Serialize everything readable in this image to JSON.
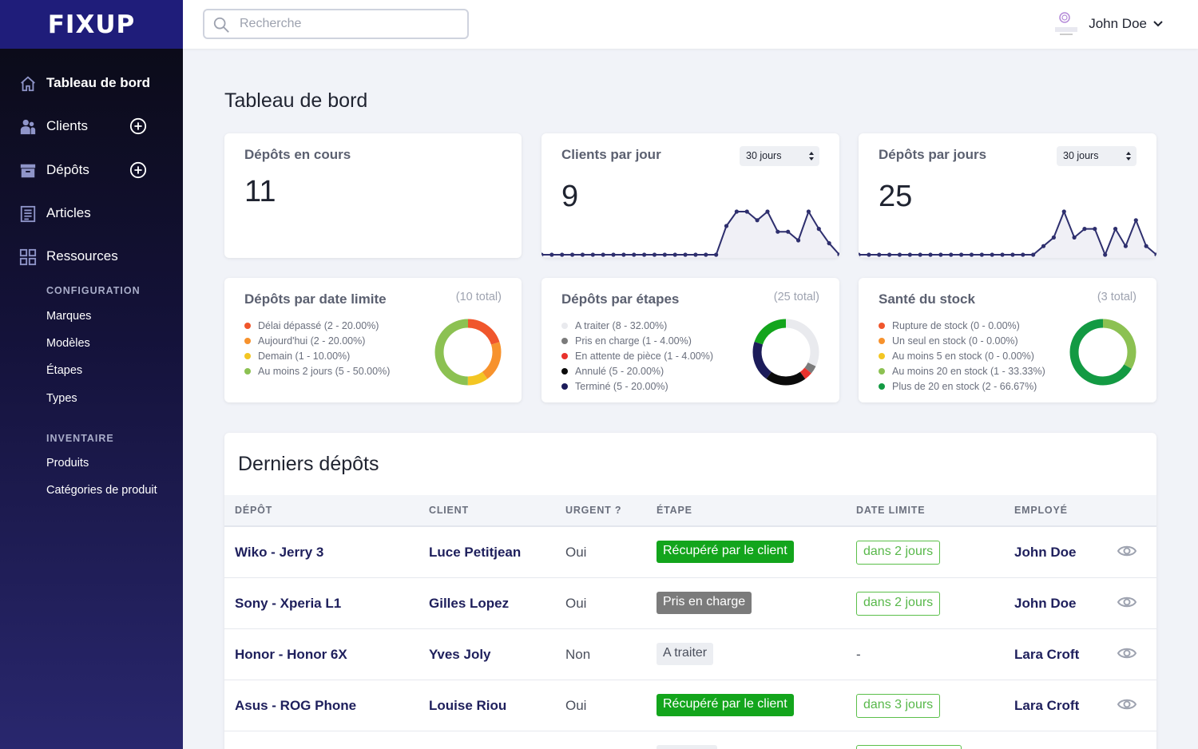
{
  "app": {
    "logo": "FIXUP"
  },
  "sidebar": {
    "items": [
      {
        "label": "Tableau de bord",
        "icon": "home-icon"
      },
      {
        "label": "Clients",
        "icon": "users-icon"
      },
      {
        "label": "Dépôts",
        "icon": "box-icon"
      },
      {
        "label": "Articles",
        "icon": "list-icon"
      },
      {
        "label": "Ressources",
        "icon": "grid-icon"
      }
    ],
    "config_title": "CONFIGURATION",
    "config_items": [
      "Marques",
      "Modèles",
      "Étapes",
      "Types"
    ],
    "inventory_title": "INVENTAIRE",
    "inventory_items": [
      "Produits",
      "Catégories de produit"
    ]
  },
  "topbar": {
    "search_placeholder": "Recherche",
    "user_name": "John Doe"
  },
  "page": {
    "title": "Tableau de bord"
  },
  "stats": [
    {
      "title": "Dépôts en cours",
      "value": "11"
    },
    {
      "title": "Clients par jour",
      "value": "9",
      "period": "30 jours"
    },
    {
      "title": "Dépôts par jours",
      "value": "25",
      "period": "30 jours"
    }
  ],
  "sparklines": {
    "clients": [
      0,
      0,
      0,
      0,
      0,
      0,
      0,
      0,
      0,
      0,
      0,
      0,
      0,
      0,
      0,
      0,
      0,
      0,
      1,
      1.5,
      1.5,
      1.2,
      1.5,
      0.8,
      0.8,
      0.5,
      1.5,
      0.9,
      0.4,
      0
    ],
    "depots": [
      0,
      0,
      0,
      0,
      0,
      0,
      0,
      0,
      0,
      0,
      0,
      0,
      0,
      0,
      0,
      0,
      0,
      0,
      0.3,
      0.6,
      1.5,
      0.6,
      0.9,
      0.9,
      0,
      0.9,
      0.3,
      1.2,
      0.3,
      0
    ],
    "color": "#2e2f6e"
  },
  "donuts": [
    {
      "title": "Dépôts par date limite",
      "total": "(10 total)",
      "legend": [
        {
          "label": "Délai dépassé (2 - 20.00%)",
          "color": "#f0562c",
          "value": 2
        },
        {
          "label": "Aujourd'hui (2 - 20.00%)",
          "color": "#f7922d",
          "value": 2
        },
        {
          "label": "Demain (1 - 10.00%)",
          "color": "#f3c623",
          "value": 1
        },
        {
          "label": "Au moins 2 jours (5 - 50.00%)",
          "color": "#8cc152",
          "value": 5
        }
      ]
    },
    {
      "title": "Dépôts par étapes",
      "total": "(25 total)",
      "legend": [
        {
          "label": "A traiter (8 - 32.00%)",
          "color": "#e9eaee",
          "value": 8
        },
        {
          "label": "Pris en charge (1 - 4.00%)",
          "color": "#7b7b7b",
          "value": 1
        },
        {
          "label": "En attente de pièce (1 - 4.00%)",
          "color": "#e8322c",
          "value": 1
        },
        {
          "label": "Annulé (5 - 20.00%)",
          "color": "#0b0b0b",
          "value": 5
        },
        {
          "label": "Terminé (5 - 20.00%)",
          "color": "#1c1c5a",
          "value": 5
        },
        {
          "color": "#13a51c",
          "value": 5
        }
      ]
    },
    {
      "title": "Santé du stock",
      "total": "(3 total)",
      "legend": [
        {
          "label": "Rupture de stock (0 - 0.00%)",
          "color": "#f0562c",
          "value": 0
        },
        {
          "label": "Un seul en stock (0 - 0.00%)",
          "color": "#f7922d",
          "value": 0
        },
        {
          "label": "Au moins 5 en stock (0 - 0.00%)",
          "color": "#f3c623",
          "value": 0
        },
        {
          "label": "Au moins 20 en stock (1 - 33.33%)",
          "color": "#8cc152",
          "value": 1
        },
        {
          "label": "Plus de 20 en stock (2 - 66.67%)",
          "color": "#139a43",
          "value": 2
        }
      ]
    }
  ],
  "table": {
    "title": "Derniers dépôts",
    "headers": [
      "DÉPÔT",
      "CLIENT",
      "URGENT ?",
      "ÉTAPE",
      "DATE LIMITE",
      "EMPLOYÉ"
    ],
    "rows": [
      {
        "depot": "Wiko - Jerry 3",
        "client": "Luce Petitjean",
        "urgent": "Oui",
        "etape": "Récupéré par le client",
        "etape_style": "green",
        "deadline": "dans 2 jours",
        "employee": "John Doe"
      },
      {
        "depot": "Sony - Xperia L1",
        "client": "Gilles Lopez",
        "urgent": "Oui",
        "etape": "Pris en charge",
        "etape_style": "gray",
        "deadline": "dans 2 jours",
        "employee": "John Doe"
      },
      {
        "depot": "Honor - Honor 6X",
        "client": "Yves Joly",
        "urgent": "Non",
        "etape": "A traiter",
        "etape_style": "light",
        "deadline": "-",
        "employee": "Lara Croft"
      },
      {
        "depot": "Asus - ROG Phone",
        "client": "Louise Riou",
        "urgent": "Oui",
        "etape": "Récupéré par le client",
        "etape_style": "green",
        "deadline": "dans 3 jours",
        "employee": "Lara Croft"
      }
    ]
  }
}
